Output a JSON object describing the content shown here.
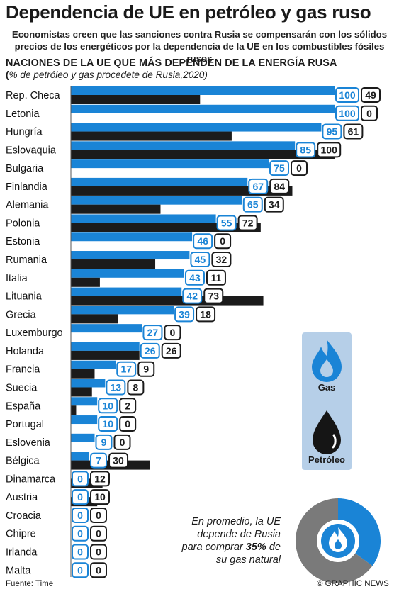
{
  "header": {
    "title": "Dependencia de UE en petróleo y gas ruso",
    "subtitle": "Economistas creen que las sanciones contra Rusia se compensarán con los sólidos precios de los energéticos por la dependencia de la UE en los combustibles fósiles rusos"
  },
  "chart_heading": "NACIONES DE LA UE QUE MÁS DEPENDEN  DE LA ENERGÍA RUSA",
  "chart_sub": {
    "open": "(",
    "text": "% de petróleo y gas  procedete de Rusia,2020)"
  },
  "colors": {
    "gas": "#1a84d6",
    "oil": "#1b1b1b",
    "panel": "#b6cfe8",
    "donut_other": "#7a7a7a"
  },
  "legend": {
    "gas_label": "Gas",
    "oil_label": "Petróleo",
    "gas_icon": "gas-flame-icon",
    "oil_icon": "oil-drop-icon"
  },
  "chart_data": {
    "type": "bar",
    "orientation": "horizontal",
    "categories": [
      "Rep. Checa",
      "Letonia",
      "Hungría",
      "Eslovaquia",
      "Bulgaria",
      "Finlandia",
      "Alemania",
      "Polonia",
      "Estonia",
      "Rumania",
      "Italia",
      "Lituania",
      "Grecia",
      "Luxemburgo",
      "Holanda",
      "Francia",
      "Suecia",
      "España",
      "Portugal",
      "Eslovenia",
      "Bélgica",
      "Dinamarca",
      "Austria",
      "Croacia",
      "Chipre",
      "Irlanda",
      "Malta"
    ],
    "series": [
      {
        "name": "Gas",
        "values": [
          100,
          100,
          95,
          85,
          75,
          67,
          65,
          55,
          46,
          45,
          43,
          42,
          39,
          27,
          26,
          17,
          13,
          10,
          10,
          9,
          7,
          0,
          0,
          0,
          0,
          0,
          0
        ]
      },
      {
        "name": "Petróleo",
        "values": [
          49,
          0,
          61,
          100,
          0,
          84,
          34,
          72,
          0,
          32,
          11,
          73,
          18,
          0,
          26,
          9,
          8,
          2,
          0,
          0,
          30,
          12,
          10,
          0,
          0,
          0,
          0
        ]
      }
    ],
    "xlim": [
      0,
      100
    ],
    "legend_position": "right",
    "average": {
      "value": 35,
      "text_pre": "En promedio, la UE depende de Rusia para comprar ",
      "value_label": "35%",
      "text_post": " de su gas natural"
    }
  },
  "footer": {
    "source": "Fuente: Time",
    "credit": "© GRAPHIC NEWS"
  }
}
